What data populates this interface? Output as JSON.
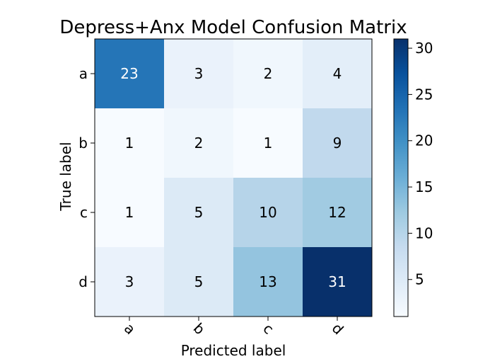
{
  "chart_data": {
    "type": "heatmap",
    "title": "Depress+Anx Model Confusion Matrix",
    "xlabel": "Predicted label",
    "ylabel": "True label",
    "x_categories": [
      "a",
      "b",
      "c",
      "d"
    ],
    "y_categories": [
      "a",
      "b",
      "c",
      "d"
    ],
    "values": [
      [
        23,
        3,
        2,
        4
      ],
      [
        1,
        2,
        1,
        9
      ],
      [
        1,
        5,
        10,
        12
      ],
      [
        3,
        5,
        13,
        31
      ]
    ],
    "colormap": "Blues",
    "colorbar_range": [
      1,
      31
    ],
    "colorbar_ticks": [
      5,
      10,
      15,
      20,
      25,
      30
    ],
    "grid": false
  }
}
